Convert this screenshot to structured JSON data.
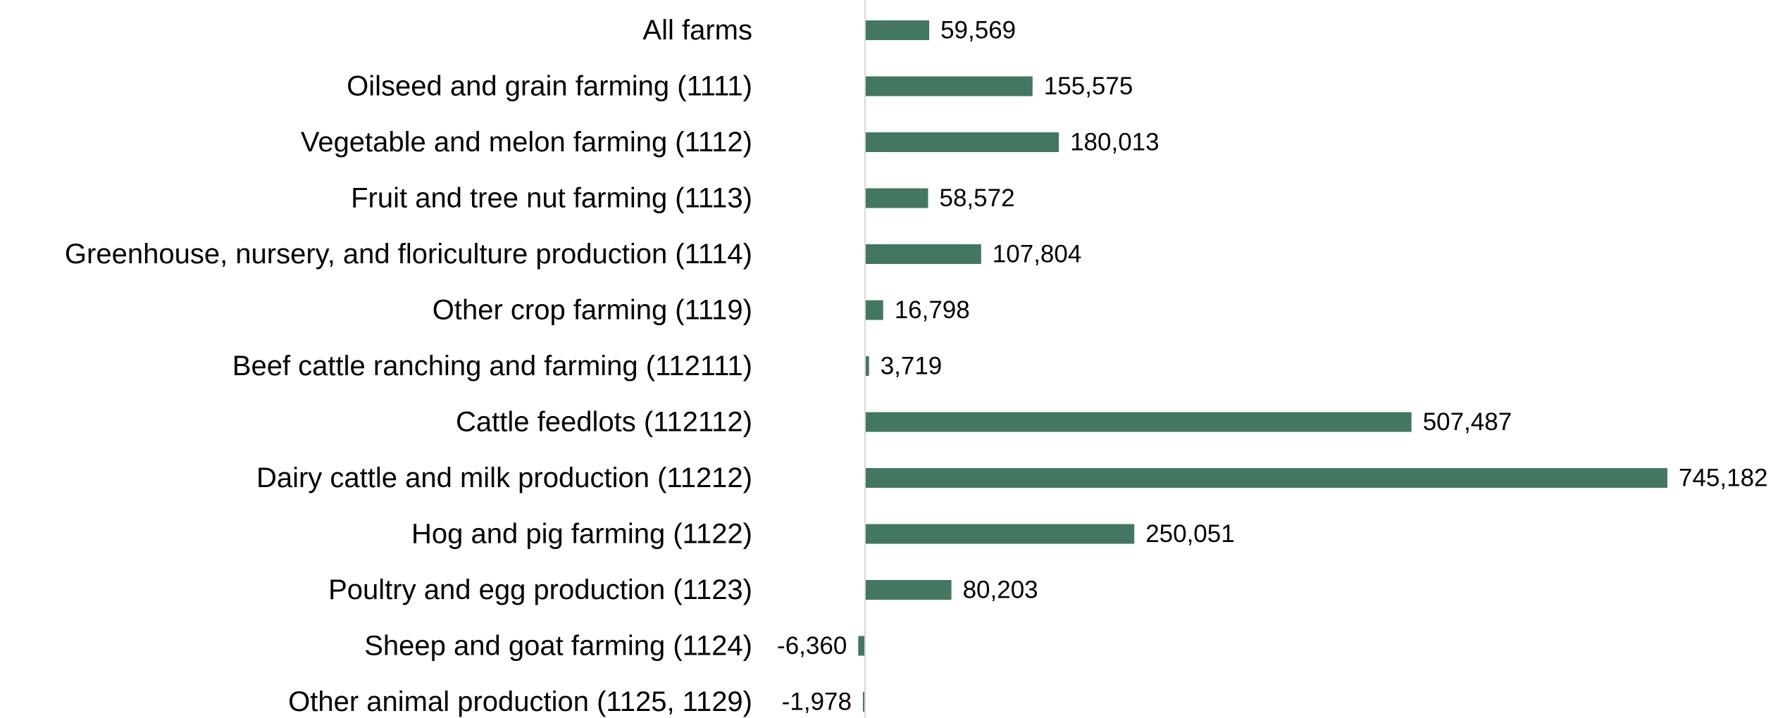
{
  "chart_data": {
    "type": "bar",
    "orientation": "horizontal",
    "categories": [
      "All farms",
      "Oilseed and grain farming (1111)",
      "Vegetable and melon farming (1112)",
      "Fruit and tree nut farming (1113)",
      "Greenhouse, nursery, and floriculture production (1114)",
      "Other crop farming (1119)",
      "Beef cattle ranching and farming (112111)",
      "Cattle feedlots (112112)",
      "Dairy cattle and milk production (11212)",
      "Hog and pig farming (1122)",
      "Poultry and egg production (1123)",
      "Sheep and goat farming (1124)",
      "Other animal production (1125, 1129)"
    ],
    "values": [
      59569,
      155575,
      180013,
      58572,
      107804,
      16798,
      3719,
      507487,
      745182,
      250051,
      80203,
      -6360,
      -1978
    ],
    "value_labels": [
      "59,569",
      "155,575",
      "180,013",
      "58,572",
      "107,804",
      "16,798",
      "3,719",
      "507,487",
      "745,182",
      "250,051",
      "80,203",
      "-6,360",
      "-1,978"
    ],
    "bar_color": "#44775f",
    "axis_color": "#d9d9d9",
    "grid": false,
    "legend": "none"
  }
}
